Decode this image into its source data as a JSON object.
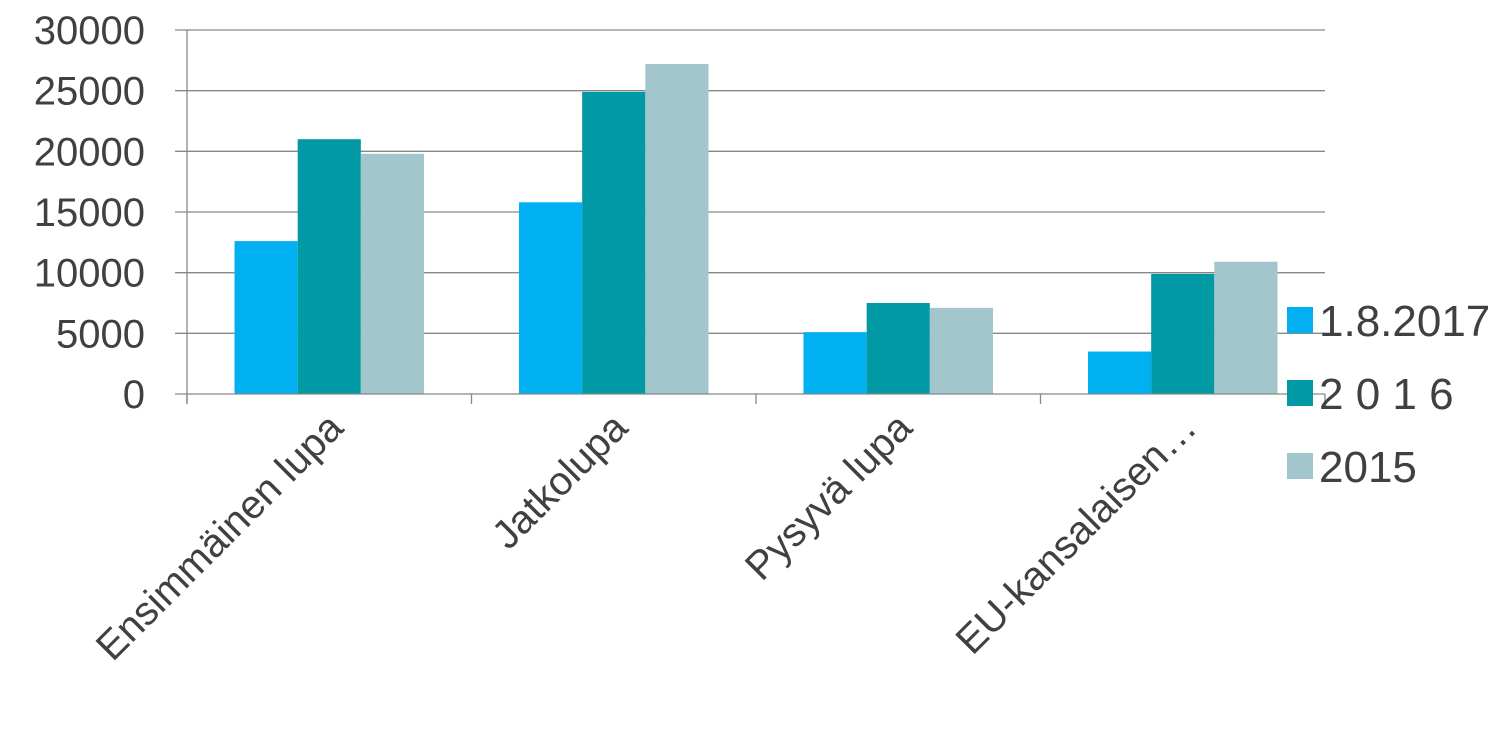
{
  "chart_data": {
    "type": "bar",
    "categories": [
      "Ensimmäinen lupa",
      "Jatkolupa",
      "Pysyvä lupa",
      "EU-kansalaisen…"
    ],
    "series": [
      {
        "name": "1.8.2017",
        "color": "#00b0f0",
        "values": [
          12600,
          15800,
          5100,
          3500
        ]
      },
      {
        "name": "2 0 1 6",
        "color": "#0099a4",
        "values": [
          21000,
          24900,
          7500,
          9900
        ]
      },
      {
        "name": "2015",
        "color": "#a2c6cc",
        "values": [
          19800,
          27200,
          7100,
          10900
        ]
      }
    ],
    "ylim": [
      0,
      30000
    ],
    "yticks": [
      0,
      5000,
      10000,
      15000,
      20000,
      25000,
      30000
    ],
    "grid": true,
    "legend": "right"
  }
}
